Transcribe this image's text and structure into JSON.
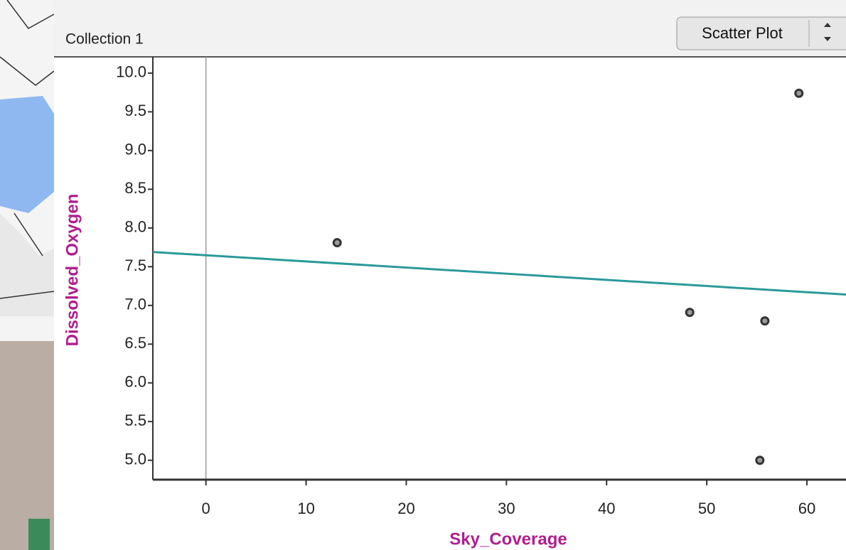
{
  "header": {
    "title": "Collection 1",
    "view_menu": "Scatter Plot"
  },
  "chart_data": {
    "type": "scatter",
    "xlabel": "Sky_Coverage",
    "ylabel": "Dissolved_Oxygen",
    "x": [
      13.1,
      48.3,
      55.8,
      55.3,
      59.2
    ],
    "y": [
      7.81,
      6.91,
      6.8,
      5.0,
      9.74
    ],
    "point_color": "#9a9a9a",
    "trend_line": {
      "color": "#2a9a9a",
      "x": [
        -5.3,
        63.9
      ],
      "y": [
        7.69,
        7.14
      ]
    },
    "xlim": [
      -5.3,
      63.9
    ],
    "ylim": [
      4.75,
      10.21
    ],
    "xticks": [
      0,
      10,
      20,
      30,
      40,
      50,
      60
    ],
    "yticks": [
      {
        "value": 5,
        "label": "5.0"
      },
      5.5,
      {
        "value": 6,
        "label": "6.0"
      },
      6.5,
      {
        "value": 7,
        "label": "7.0"
      },
      7.5,
      {
        "value": 8,
        "label": "8.0"
      },
      8.5,
      {
        "value": 9,
        "label": "9.0"
      },
      9.5,
      {
        "value": 10,
        "label": "10.0"
      }
    ]
  }
}
